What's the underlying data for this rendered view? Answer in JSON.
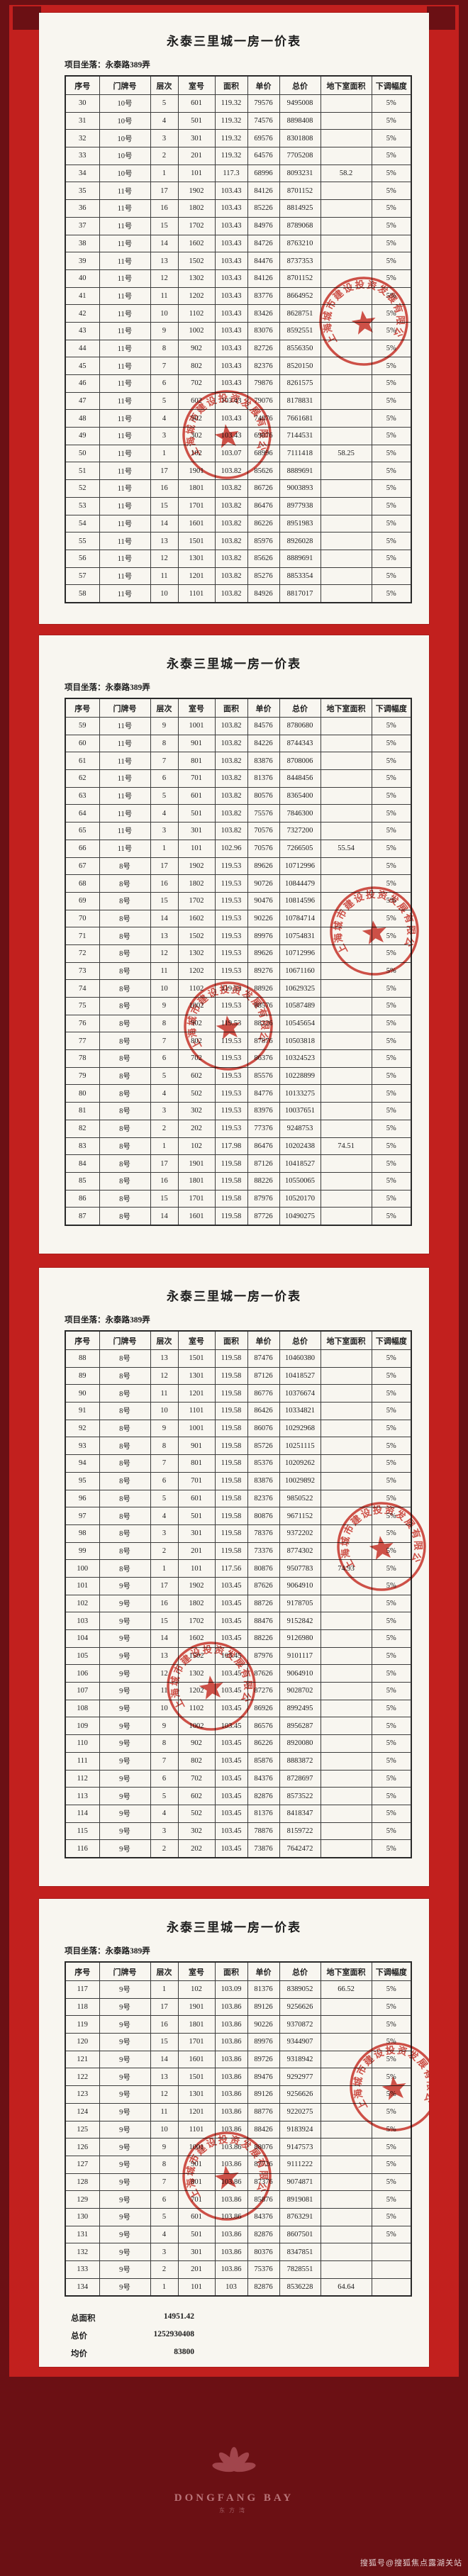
{
  "common": {
    "title": "永泰三里城一房一价表",
    "location": "项目坐落：永泰路389弄",
    "columns": [
      "序号",
      "门牌号",
      "层次",
      "室号",
      "面积",
      "单价",
      "总价",
      "地下室面积",
      "下调幅度"
    ]
  },
  "stamp": {
    "company": "上海城市建设投资发展有限公司"
  },
  "pages": [
    {
      "rows": [
        [
          "30",
          "10号",
          "5",
          "601",
          "119.32",
          "79576",
          "9495008",
          "",
          "5%"
        ],
        [
          "31",
          "10号",
          "4",
          "501",
          "119.32",
          "74576",
          "8898408",
          "",
          "5%"
        ],
        [
          "32",
          "10号",
          "3",
          "301",
          "119.32",
          "69576",
          "8301808",
          "",
          "5%"
        ],
        [
          "33",
          "10号",
          "2",
          "201",
          "119.32",
          "64576",
          "7705208",
          "",
          "5%"
        ],
        [
          "34",
          "10号",
          "1",
          "101",
          "117.3",
          "68996",
          "8093231",
          "58.2",
          "5%"
        ],
        [
          "35",
          "11号",
          "17",
          "1902",
          "103.43",
          "84126",
          "8701152",
          "",
          "5%"
        ],
        [
          "36",
          "11号",
          "16",
          "1802",
          "103.43",
          "85226",
          "8814925",
          "",
          "5%"
        ],
        [
          "37",
          "11号",
          "15",
          "1702",
          "103.43",
          "84976",
          "8789068",
          "",
          "5%"
        ],
        [
          "38",
          "11号",
          "14",
          "1602",
          "103.43",
          "84726",
          "8763210",
          "",
          "5%"
        ],
        [
          "39",
          "11号",
          "13",
          "1502",
          "103.43",
          "84476",
          "8737353",
          "",
          "5%"
        ],
        [
          "40",
          "11号",
          "12",
          "1302",
          "103.43",
          "84126",
          "8701152",
          "",
          "5%"
        ],
        [
          "41",
          "11号",
          "11",
          "1202",
          "103.43",
          "83776",
          "8664952",
          "",
          "5%"
        ],
        [
          "42",
          "11号",
          "10",
          "1102",
          "103.43",
          "83426",
          "8628751",
          "",
          "5%"
        ],
        [
          "43",
          "11号",
          "9",
          "1002",
          "103.43",
          "83076",
          "8592551",
          "",
          "5%"
        ],
        [
          "44",
          "11号",
          "8",
          "902",
          "103.43",
          "82726",
          "8556350",
          "",
          "5%"
        ],
        [
          "45",
          "11号",
          "7",
          "802",
          "103.43",
          "82376",
          "8520150",
          "",
          "5%"
        ],
        [
          "46",
          "11号",
          "6",
          "702",
          "103.43",
          "79876",
          "8261575",
          "",
          "5%"
        ],
        [
          "47",
          "11号",
          "5",
          "602",
          "103.43",
          "79076",
          "8178831",
          "",
          "5%"
        ],
        [
          "48",
          "11号",
          "4",
          "502",
          "103.43",
          "74076",
          "7661681",
          "",
          "5%"
        ],
        [
          "49",
          "11号",
          "3",
          "302",
          "103.43",
          "69076",
          "7144531",
          "",
          "5%"
        ],
        [
          "50",
          "11号",
          "1",
          "102",
          "103.07",
          "68996",
          "7111418",
          "58.25",
          "5%"
        ],
        [
          "51",
          "11号",
          "17",
          "1901",
          "103.82",
          "85626",
          "8889691",
          "",
          "5%"
        ],
        [
          "52",
          "11号",
          "16",
          "1801",
          "103.82",
          "86726",
          "9003893",
          "",
          "5%"
        ],
        [
          "53",
          "11号",
          "15",
          "1701",
          "103.82",
          "86476",
          "8977938",
          "",
          "5%"
        ],
        [
          "54",
          "11号",
          "14",
          "1601",
          "103.82",
          "86226",
          "8951983",
          "",
          "5%"
        ],
        [
          "55",
          "11号",
          "13",
          "1501",
          "103.82",
          "85976",
          "8926028",
          "",
          "5%"
        ],
        [
          "56",
          "11号",
          "12",
          "1301",
          "103.82",
          "85626",
          "8889691",
          "",
          "5%"
        ],
        [
          "57",
          "11号",
          "11",
          "1201",
          "103.82",
          "85276",
          "8853354",
          "",
          "5%"
        ],
        [
          "58",
          "11号",
          "10",
          "1101",
          "103.82",
          "84926",
          "8817017",
          "",
          "5%"
        ]
      ]
    },
    {
      "rows": [
        [
          "59",
          "11号",
          "9",
          "1001",
          "103.82",
          "84576",
          "8780680",
          "",
          "5%"
        ],
        [
          "60",
          "11号",
          "8",
          "901",
          "103.82",
          "84226",
          "8744343",
          "",
          "5%"
        ],
        [
          "61",
          "11号",
          "7",
          "801",
          "103.82",
          "83876",
          "8708006",
          "",
          "5%"
        ],
        [
          "62",
          "11号",
          "6",
          "701",
          "103.82",
          "81376",
          "8448456",
          "",
          "5%"
        ],
        [
          "63",
          "11号",
          "5",
          "601",
          "103.82",
          "80576",
          "8365400",
          "",
          "5%"
        ],
        [
          "64",
          "11号",
          "4",
          "501",
          "103.82",
          "75576",
          "7846300",
          "",
          "5%"
        ],
        [
          "65",
          "11号",
          "3",
          "301",
          "103.82",
          "70576",
          "7327200",
          "",
          "5%"
        ],
        [
          "66",
          "11号",
          "1",
          "101",
          "102.96",
          "70576",
          "7266505",
          "55.54",
          "5%"
        ],
        [
          "67",
          "8号",
          "17",
          "1902",
          "119.53",
          "89626",
          "10712996",
          "",
          "5%"
        ],
        [
          "68",
          "8号",
          "16",
          "1802",
          "119.53",
          "90726",
          "10844479",
          "",
          "5%"
        ],
        [
          "69",
          "8号",
          "15",
          "1702",
          "119.53",
          "90476",
          "10814596",
          "",
          "5%"
        ],
        [
          "70",
          "8号",
          "14",
          "1602",
          "119.53",
          "90226",
          "10784714",
          "",
          "5%"
        ],
        [
          "71",
          "8号",
          "13",
          "1502",
          "119.53",
          "89976",
          "10754831",
          "",
          "5%"
        ],
        [
          "72",
          "8号",
          "12",
          "1302",
          "119.53",
          "89626",
          "10712996",
          "",
          "5%"
        ],
        [
          "73",
          "8号",
          "11",
          "1202",
          "119.53",
          "89276",
          "10671160",
          "",
          "5%"
        ],
        [
          "74",
          "8号",
          "10",
          "1102",
          "119.53",
          "88926",
          "10629325",
          "",
          "5%"
        ],
        [
          "75",
          "8号",
          "9",
          "1002",
          "119.53",
          "88576",
          "10587489",
          "",
          "5%"
        ],
        [
          "76",
          "8号",
          "8",
          "902",
          "119.53",
          "88226",
          "10545654",
          "",
          "5%"
        ],
        [
          "77",
          "8号",
          "7",
          "802",
          "119.53",
          "87876",
          "10503818",
          "",
          "5%"
        ],
        [
          "78",
          "8号",
          "6",
          "702",
          "119.53",
          "86376",
          "10324523",
          "",
          "5%"
        ],
        [
          "79",
          "8号",
          "5",
          "602",
          "119.53",
          "85576",
          "10228899",
          "",
          "5%"
        ],
        [
          "80",
          "8号",
          "4",
          "502",
          "119.53",
          "84776",
          "10133275",
          "",
          "5%"
        ],
        [
          "81",
          "8号",
          "3",
          "302",
          "119.53",
          "83976",
          "10037651",
          "",
          "5%"
        ],
        [
          "82",
          "8号",
          "2",
          "202",
          "119.53",
          "77376",
          "9248753",
          "",
          "5%"
        ],
        [
          "83",
          "8号",
          "1",
          "102",
          "117.98",
          "86476",
          "10202438",
          "74.51",
          "5%"
        ],
        [
          "84",
          "8号",
          "17",
          "1901",
          "119.58",
          "87126",
          "10418527",
          "",
          "5%"
        ],
        [
          "85",
          "8号",
          "16",
          "1801",
          "119.58",
          "88226",
          "10550065",
          "",
          "5%"
        ],
        [
          "86",
          "8号",
          "15",
          "1701",
          "119.58",
          "87976",
          "10520170",
          "",
          "5%"
        ],
        [
          "87",
          "8号",
          "14",
          "1601",
          "119.58",
          "87726",
          "10490275",
          "",
          "5%"
        ]
      ]
    },
    {
      "rows": [
        [
          "88",
          "8号",
          "13",
          "1501",
          "119.58",
          "87476",
          "10460380",
          "",
          "5%"
        ],
        [
          "89",
          "8号",
          "12",
          "1301",
          "119.58",
          "87126",
          "10418527",
          "",
          "5%"
        ],
        [
          "90",
          "8号",
          "11",
          "1201",
          "119.58",
          "86776",
          "10376674",
          "",
          "5%"
        ],
        [
          "91",
          "8号",
          "10",
          "1101",
          "119.58",
          "86426",
          "10334821",
          "",
          "5%"
        ],
        [
          "92",
          "8号",
          "9",
          "1001",
          "119.58",
          "86076",
          "10292968",
          "",
          "5%"
        ],
        [
          "93",
          "8号",
          "8",
          "901",
          "119.58",
          "85726",
          "10251115",
          "",
          "5%"
        ],
        [
          "94",
          "8号",
          "7",
          "801",
          "119.58",
          "85376",
          "10209262",
          "",
          "5%"
        ],
        [
          "95",
          "8号",
          "6",
          "701",
          "119.58",
          "83876",
          "10029892",
          "",
          "5%"
        ],
        [
          "96",
          "8号",
          "5",
          "601",
          "119.58",
          "82376",
          "9850522",
          "",
          "5%"
        ],
        [
          "97",
          "8号",
          "4",
          "501",
          "119.58",
          "80876",
          "9671152",
          "",
          "5%"
        ],
        [
          "98",
          "8号",
          "3",
          "301",
          "119.58",
          "78376",
          "9372202",
          "",
          "5%"
        ],
        [
          "99",
          "8号",
          "2",
          "201",
          "119.58",
          "73376",
          "8774302",
          "",
          "5%"
        ],
        [
          "100",
          "8号",
          "1",
          "101",
          "117.56",
          "80876",
          "9507783",
          "74.93",
          "5%"
        ],
        [
          "101",
          "9号",
          "17",
          "1902",
          "103.45",
          "87626",
          "9064910",
          "",
          "5%"
        ],
        [
          "102",
          "9号",
          "16",
          "1802",
          "103.45",
          "88726",
          "9178705",
          "",
          "5%"
        ],
        [
          "103",
          "9号",
          "15",
          "1702",
          "103.45",
          "88476",
          "9152842",
          "",
          "5%"
        ],
        [
          "104",
          "9号",
          "14",
          "1602",
          "103.45",
          "88226",
          "9126980",
          "",
          "5%"
        ],
        [
          "105",
          "9号",
          "13",
          "1502",
          "103.45",
          "87976",
          "9101117",
          "",
          "5%"
        ],
        [
          "106",
          "9号",
          "12",
          "1302",
          "103.45",
          "87626",
          "9064910",
          "",
          "5%"
        ],
        [
          "107",
          "9号",
          "11",
          "1202",
          "103.45",
          "87276",
          "9028702",
          "",
          "5%"
        ],
        [
          "108",
          "9号",
          "10",
          "1102",
          "103.45",
          "86926",
          "8992495",
          "",
          "5%"
        ],
        [
          "109",
          "9号",
          "9",
          "1002",
          "103.45",
          "86576",
          "8956287",
          "",
          "5%"
        ],
        [
          "110",
          "9号",
          "8",
          "902",
          "103.45",
          "86226",
          "8920080",
          "",
          "5%"
        ],
        [
          "111",
          "9号",
          "7",
          "802",
          "103.45",
          "85876",
          "8883872",
          "",
          "5%"
        ],
        [
          "112",
          "9号",
          "6",
          "702",
          "103.45",
          "84376",
          "8728697",
          "",
          "5%"
        ],
        [
          "113",
          "9号",
          "5",
          "602",
          "103.45",
          "82876",
          "8573522",
          "",
          "5%"
        ],
        [
          "114",
          "9号",
          "4",
          "502",
          "103.45",
          "81376",
          "8418347",
          "",
          "5%"
        ],
        [
          "115",
          "9号",
          "3",
          "302",
          "103.45",
          "78876",
          "8159722",
          "",
          "5%"
        ],
        [
          "116",
          "9号",
          "2",
          "202",
          "103.45",
          "73876",
          "7642472",
          "",
          "5%"
        ]
      ]
    },
    {
      "rows": [
        [
          "117",
          "9号",
          "1",
          "102",
          "103.09",
          "81376",
          "8389052",
          "66.52",
          "5%"
        ],
        [
          "118",
          "9号",
          "17",
          "1901",
          "103.86",
          "89126",
          "9256626",
          "",
          "5%"
        ],
        [
          "119",
          "9号",
          "16",
          "1801",
          "103.86",
          "90226",
          "9370872",
          "",
          "5%"
        ],
        [
          "120",
          "9号",
          "15",
          "1701",
          "103.86",
          "89976",
          "9344907",
          "",
          "5%"
        ],
        [
          "121",
          "9号",
          "14",
          "1601",
          "103.86",
          "89726",
          "9318942",
          "",
          "5%"
        ],
        [
          "122",
          "9号",
          "13",
          "1501",
          "103.86",
          "89476",
          "9292977",
          "",
          "5%"
        ],
        [
          "123",
          "9号",
          "12",
          "1301",
          "103.86",
          "89126",
          "9256626",
          "",
          "5%"
        ],
        [
          "124",
          "9号",
          "11",
          "1201",
          "103.86",
          "88776",
          "9220275",
          "",
          "5%"
        ],
        [
          "125",
          "9号",
          "10",
          "1101",
          "103.86",
          "88426",
          "9183924",
          "",
          "5%"
        ],
        [
          "126",
          "9号",
          "9",
          "1001",
          "103.86",
          "88076",
          "9147573",
          "",
          "5%"
        ],
        [
          "127",
          "9号",
          "8",
          "901",
          "103.86",
          "87726",
          "9111222",
          "",
          "5%"
        ],
        [
          "128",
          "9号",
          "7",
          "801",
          "103.86",
          "87376",
          "9074871",
          "",
          "5%"
        ],
        [
          "129",
          "9号",
          "6",
          "701",
          "103.86",
          "85876",
          "8919081",
          "",
          "5%"
        ],
        [
          "130",
          "9号",
          "5",
          "601",
          "103.86",
          "84376",
          "8763291",
          "",
          "5%"
        ],
        [
          "131",
          "9号",
          "4",
          "501",
          "103.86",
          "82876",
          "8607501",
          "",
          "5%"
        ],
        [
          "132",
          "9号",
          "3",
          "301",
          "103.86",
          "80376",
          "8347851",
          "",
          ""
        ],
        [
          "133",
          "9号",
          "2",
          "201",
          "103.86",
          "75376",
          "7828551",
          "",
          ""
        ],
        [
          "134",
          "9号",
          "1",
          "101",
          "103",
          "82876",
          "8536228",
          "64.64",
          ""
        ]
      ]
    }
  ],
  "summary": {
    "rows": [
      {
        "label": "总面积",
        "value": "14951.42"
      },
      {
        "label": "总价",
        "value": "1252930408"
      },
      {
        "label": "均价",
        "value": "83800"
      }
    ]
  },
  "footer": {
    "brand": "DONGFANG BAY",
    "subtitle": "东方湾"
  },
  "watermark": "搜狐号@搜狐焦点露湖关站"
}
